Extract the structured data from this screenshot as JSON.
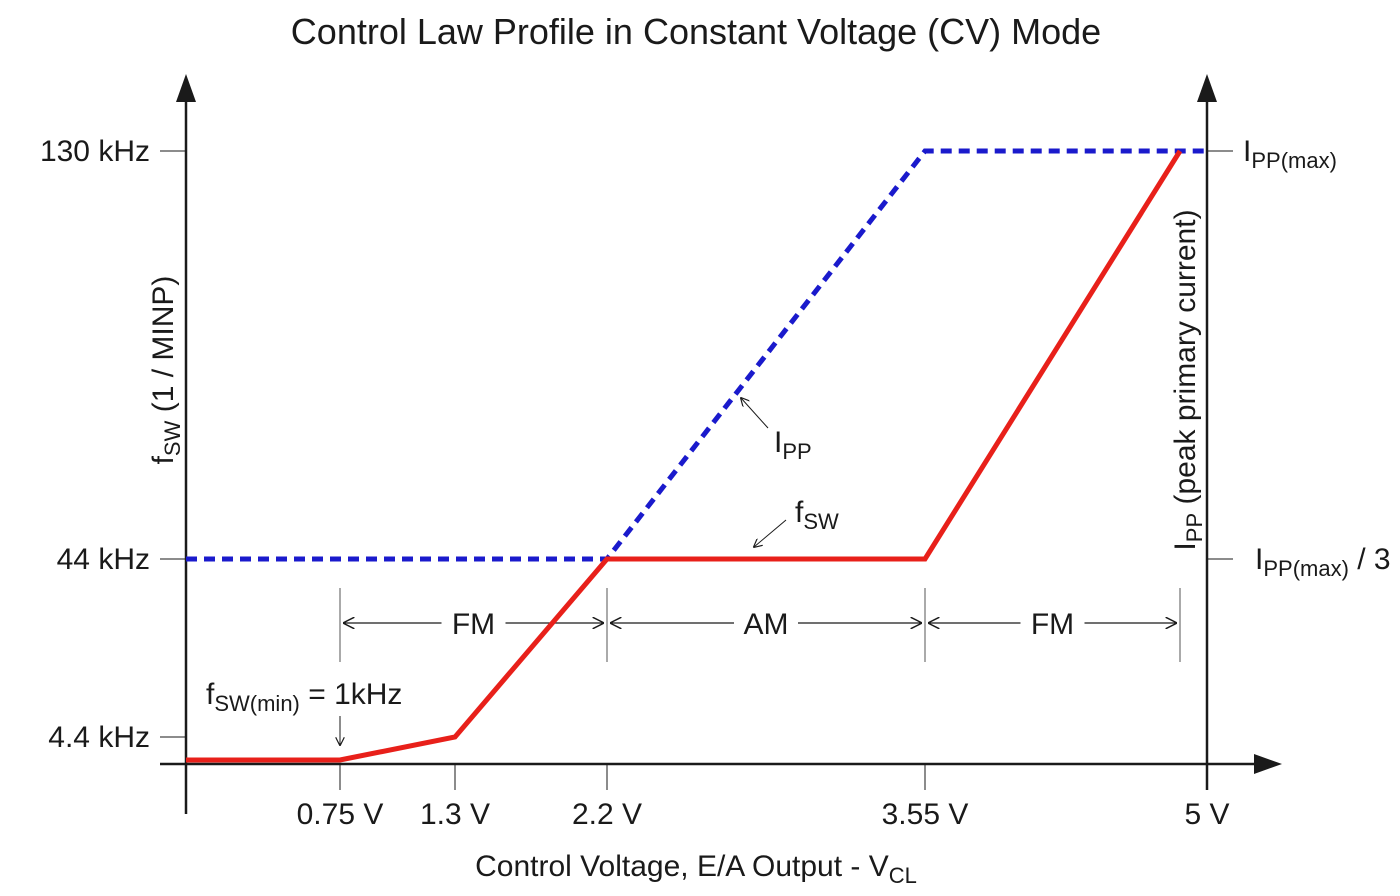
{
  "chart_data": {
    "type": "line",
    "title": "Control Law Profile in Constant Voltage (CV) Mode",
    "xlabel": {
      "main": "Control Voltage, E/A Output - V",
      "sub": "CL"
    },
    "ylabel_left": {
      "main": "f",
      "sub": "SW",
      "rest": " (1 / MINP)"
    },
    "ylabel_right": {
      "main": "I",
      "sub": "PP",
      "rest": " (peak primary current)"
    },
    "x_ticks": [
      {
        "value": 0.75,
        "label": "0.75 V"
      },
      {
        "value": 1.3,
        "label": "1.3 V"
      },
      {
        "value": 2.2,
        "label": "2.2 V"
      },
      {
        "value": 3.55,
        "label": "3.55 V"
      },
      {
        "value": 5,
        "label": "5 V"
      }
    ],
    "y_left_ticks": [
      {
        "value": 130,
        "label": "130 kHz"
      },
      {
        "value": 44,
        "label": "44 kHz"
      },
      {
        "value": 4.4,
        "label": "4.4 kHz"
      }
    ],
    "y_right_ticks": [
      {
        "key": "max",
        "main": "I",
        "sub": "PP(max)",
        "rest": ""
      },
      {
        "key": "third",
        "main": "I",
        "sub": "PP(max)",
        "rest": " / 3"
      }
    ],
    "series": [
      {
        "key": "fsw",
        "label": {
          "main": "f",
          "sub": "SW"
        },
        "color": "#e8201a",
        "style": "solid",
        "points": [
          [
            0,
            1
          ],
          [
            0.75,
            1
          ],
          [
            1.3,
            4.4
          ],
          [
            2.2,
            44
          ],
          [
            3.55,
            44
          ],
          [
            4.9,
            130
          ]
        ]
      },
      {
        "key": "ipp",
        "label": {
          "main": "I",
          "sub": "PP"
        },
        "color": "#1a1acc",
        "style": "dashed",
        "points": [
          [
            0,
            44
          ],
          [
            2.2,
            44
          ],
          [
            3.55,
            130
          ],
          [
            5,
            130
          ]
        ]
      }
    ],
    "regions": [
      {
        "label": "FM",
        "from": 0.75,
        "to": 2.2
      },
      {
        "label": "AM",
        "from": 2.2,
        "to": 3.55
      },
      {
        "label": "FM",
        "from": 3.55,
        "to": 4.9
      }
    ],
    "annotations": {
      "fsw_min": {
        "main": "f",
        "sub": "SW(min)",
        "rest": " = 1kHz",
        "x": 0.75,
        "y": 1
      }
    }
  }
}
